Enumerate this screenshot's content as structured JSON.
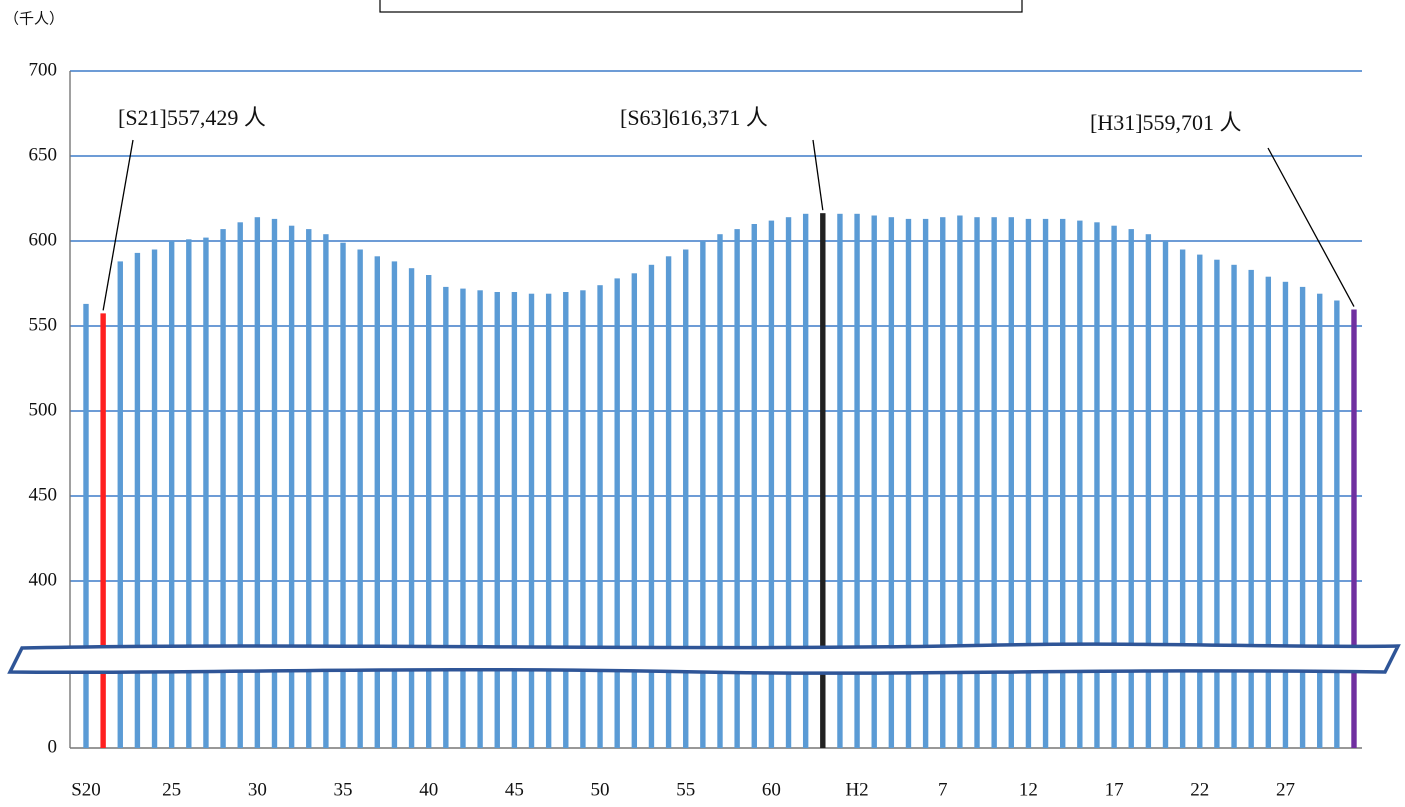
{
  "chart_data": {
    "type": "bar",
    "unit_label": "（千人）",
    "categories": [
      "S20",
      null,
      null,
      null,
      null,
      "25",
      null,
      null,
      null,
      null,
      "30",
      null,
      null,
      null,
      null,
      "35",
      null,
      null,
      null,
      null,
      "40",
      null,
      null,
      null,
      null,
      "45",
      null,
      null,
      null,
      null,
      "50",
      null,
      null,
      null,
      null,
      "55",
      null,
      null,
      null,
      null,
      "60",
      null,
      null,
      null,
      null,
      "H2",
      null,
      null,
      null,
      null,
      "7",
      null,
      null,
      null,
      null,
      "12",
      null,
      null,
      null,
      null,
      "17",
      null,
      null,
      null,
      null,
      "22",
      null,
      null,
      null,
      null,
      "27",
      null,
      null,
      null,
      null
    ],
    "values": [
      563,
      557.429,
      588,
      593,
      595,
      600,
      601,
      602,
      607,
      611,
      614,
      613,
      609,
      607,
      604,
      599,
      595,
      591,
      588,
      584,
      580,
      573,
      572,
      571,
      570,
      570,
      569,
      569,
      570,
      571,
      574,
      578,
      581,
      586,
      591,
      595,
      600,
      604,
      607,
      610,
      612,
      614,
      616,
      616.371,
      616,
      616,
      615,
      614,
      613,
      613,
      614,
      615,
      614,
      614,
      614,
      613,
      613,
      613,
      612,
      611,
      609,
      607,
      604,
      600,
      595,
      592,
      589,
      586,
      583,
      579,
      576,
      573,
      569,
      565,
      559.701
    ],
    "value_labels": [
      null,
      "[S21]557,429 人",
      null,
      null,
      null,
      null,
      null,
      null,
      null,
      null,
      null,
      null,
      null,
      null,
      null,
      null,
      null,
      null,
      null,
      null,
      null,
      null,
      null,
      null,
      null,
      null,
      null,
      null,
      null,
      null,
      null,
      null,
      null,
      null,
      null,
      null,
      null,
      null,
      null,
      null,
      null,
      null,
      null,
      "[S63]616,371 人",
      null,
      null,
      null,
      null,
      null,
      null,
      null,
      null,
      null,
      null,
      null,
      null,
      null,
      null,
      null,
      null,
      null,
      null,
      null,
      null,
      null,
      null,
      null,
      null,
      null,
      null,
      null,
      null,
      null,
      null,
      "[H31]559,701 人"
    ],
    "color": "#5b9bd5",
    "highlight_colors": {
      "1": "#ff2020",
      "43": "#222222",
      "74": "#7030a0"
    },
    "ylim": [
      0,
      700
    ],
    "yticks": [
      0,
      400,
      450,
      500,
      550,
      600,
      650,
      700
    ],
    "axis_break": 360,
    "grid": true
  }
}
